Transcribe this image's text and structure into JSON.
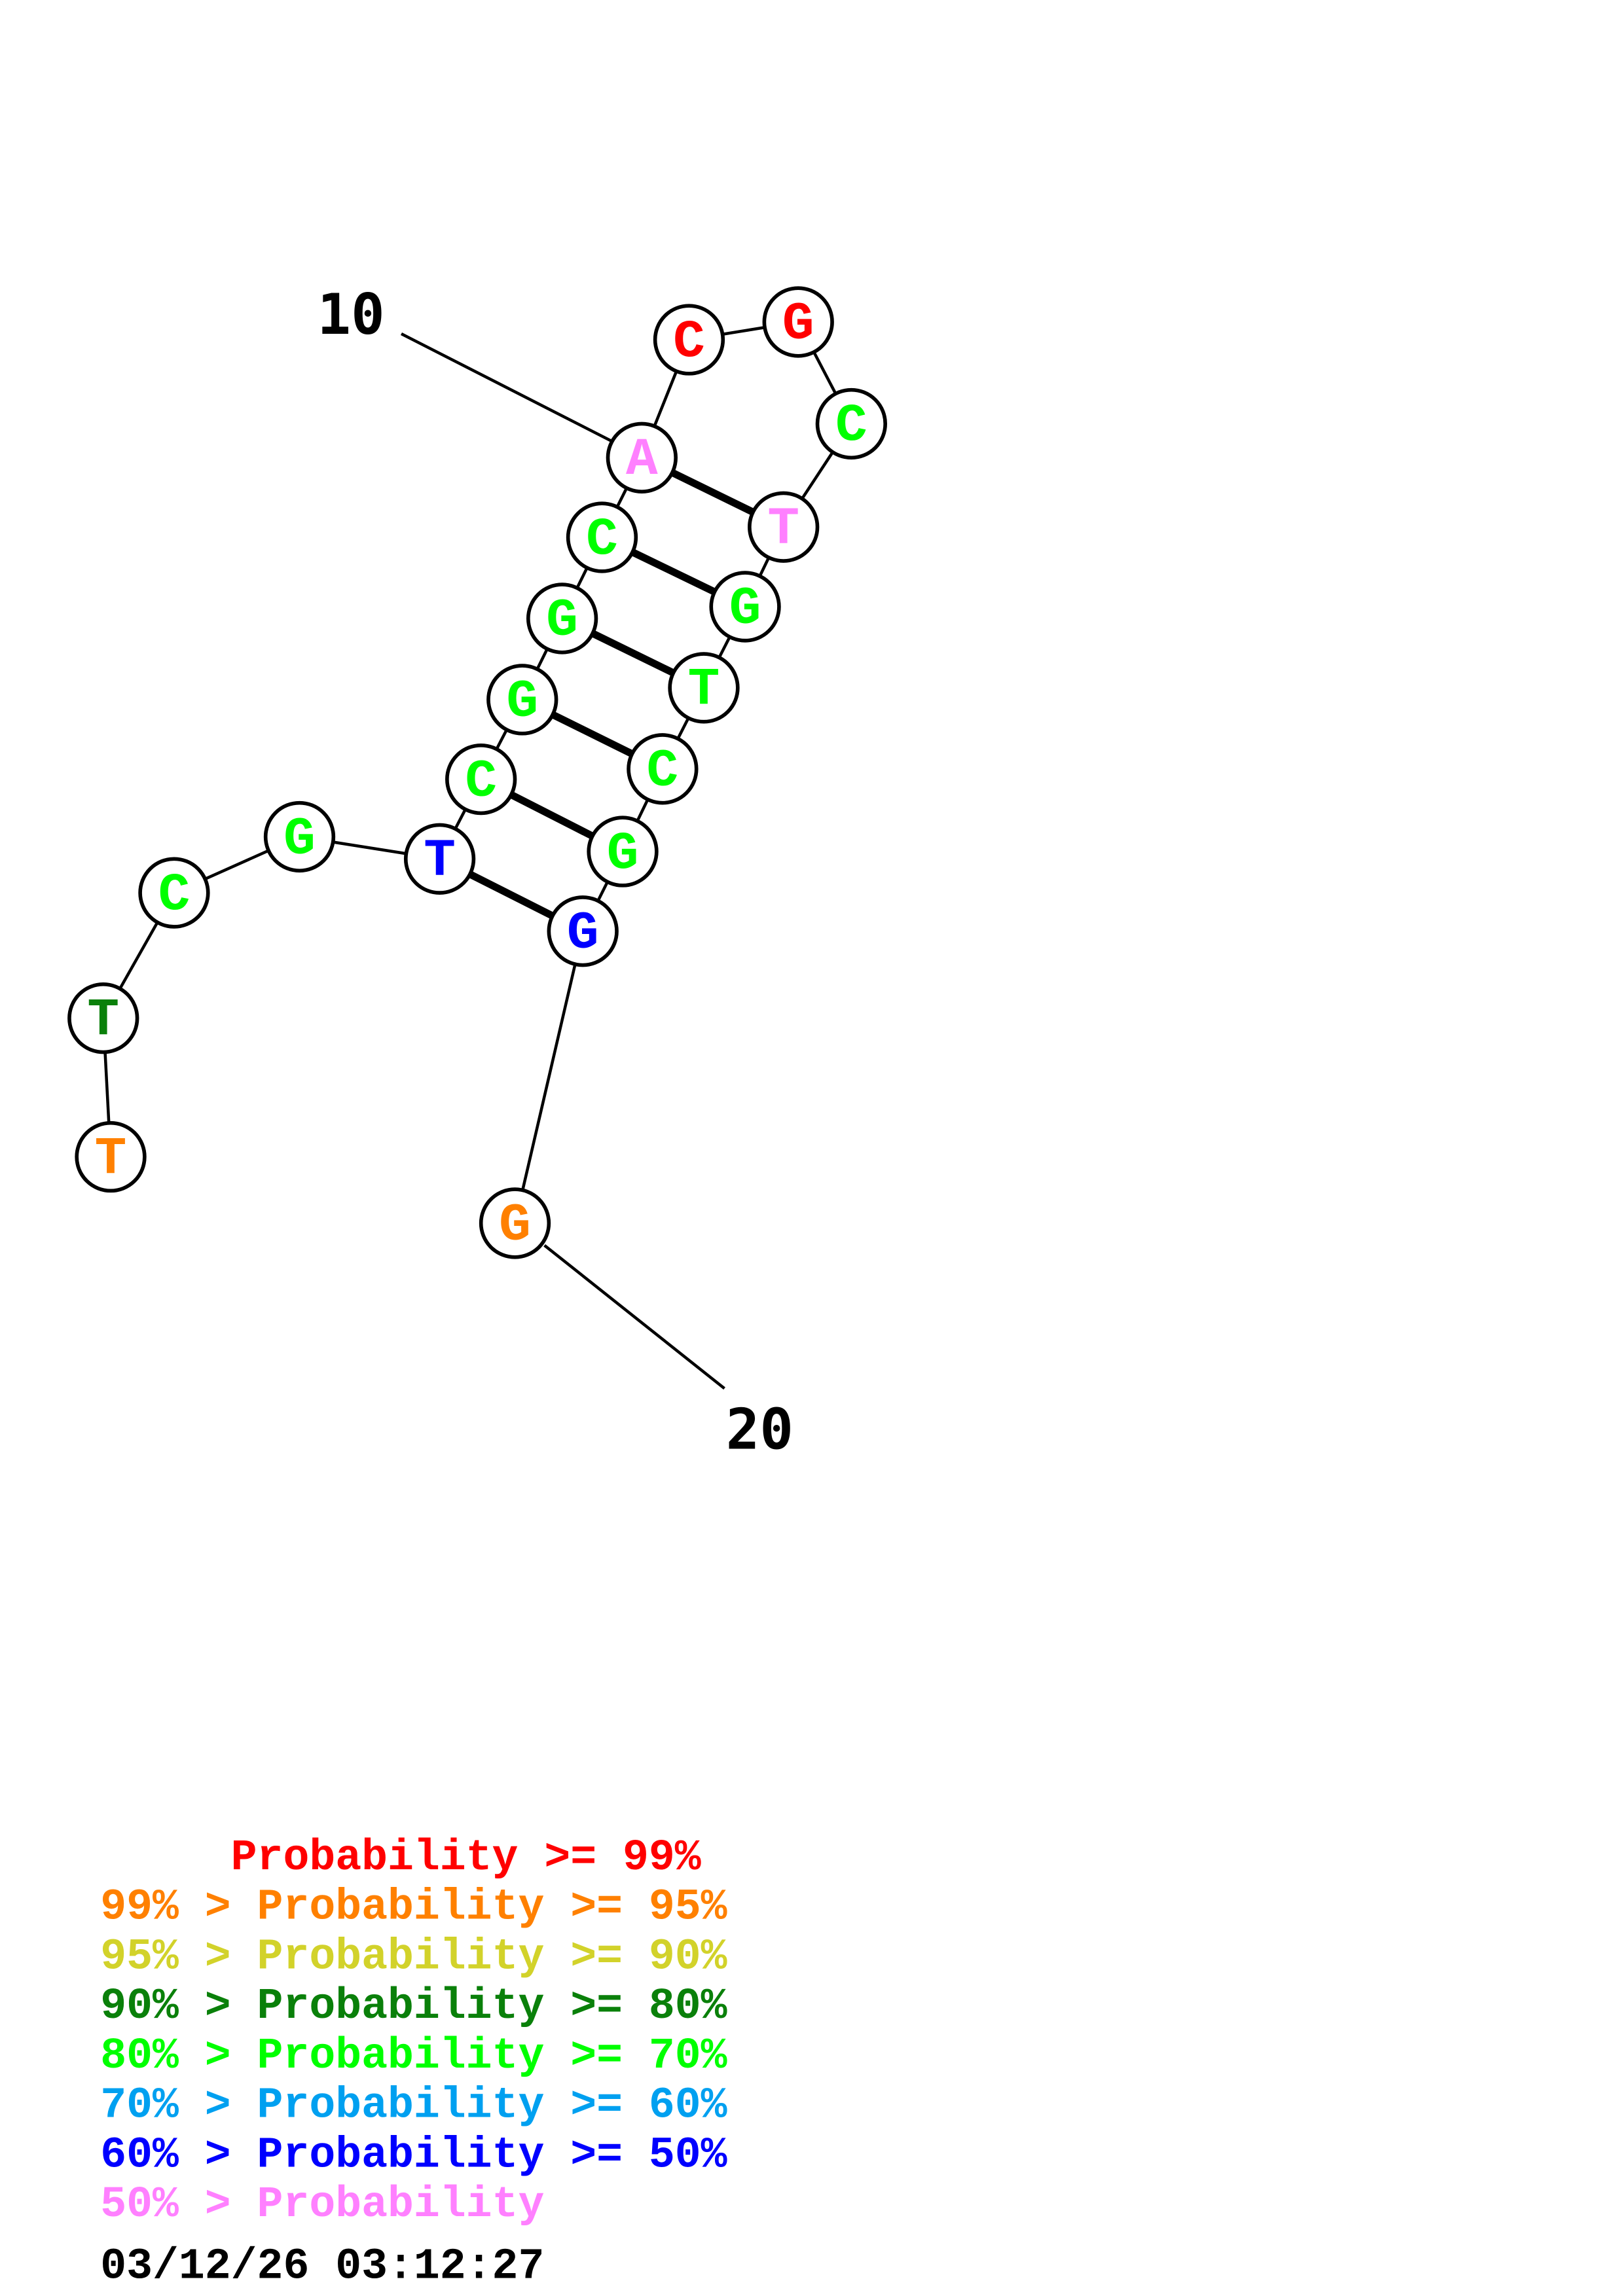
{
  "structure": {
    "sequence": [
      {
        "base": "T",
        "prob_class": 1
      },
      {
        "base": "T",
        "prob_class": 3
      },
      {
        "base": "C",
        "prob_class": 4
      },
      {
        "base": "G",
        "prob_class": 4
      },
      {
        "base": "T",
        "prob_class": 6
      },
      {
        "base": "C",
        "prob_class": 4
      },
      {
        "base": "G",
        "prob_class": 4
      },
      {
        "base": "G",
        "prob_class": 4
      },
      {
        "base": "C",
        "prob_class": 4
      },
      {
        "base": "A",
        "prob_class": 7
      },
      {
        "base": "C",
        "prob_class": 0
      },
      {
        "base": "G",
        "prob_class": 0
      },
      {
        "base": "C",
        "prob_class": 4
      },
      {
        "base": "T",
        "prob_class": 7
      },
      {
        "base": "G",
        "prob_class": 4
      },
      {
        "base": "T",
        "prob_class": 4
      },
      {
        "base": "C",
        "prob_class": 4
      },
      {
        "base": "G",
        "prob_class": 4
      },
      {
        "base": "G",
        "prob_class": 6
      },
      {
        "base": "G",
        "prob_class": 1
      }
    ],
    "base_pairs": [
      [
        5,
        19
      ],
      [
        6,
        18
      ],
      [
        7,
        17
      ],
      [
        8,
        16
      ],
      [
        9,
        15
      ],
      [
        10,
        14
      ]
    ],
    "position_labels": [
      {
        "position": 10,
        "text": "10"
      },
      {
        "position": 20,
        "text": "20"
      }
    ]
  },
  "legend": [
    {
      "text": "     Probability >= 99%",
      "color": "#ff0000"
    },
    {
      "text": "99% > Probability >= 95%",
      "color": "#ff8000"
    },
    {
      "text": "95% > Probability >= 90%",
      "color": "#d2d22a"
    },
    {
      "text": "90% > Probability >= 80%",
      "color": "#0a800a"
    },
    {
      "text": "80% > Probability >= 70%",
      "color": "#00ff00"
    },
    {
      "text": "70% > Probability >= 60%",
      "color": "#00a0f0"
    },
    {
      "text": "60% > Probability >= 50%",
      "color": "#0000ff"
    },
    {
      "text": "50% > Probability",
      "color": "#ff80ff"
    }
  ],
  "timestamp": "03/12/26 03:12:27"
}
